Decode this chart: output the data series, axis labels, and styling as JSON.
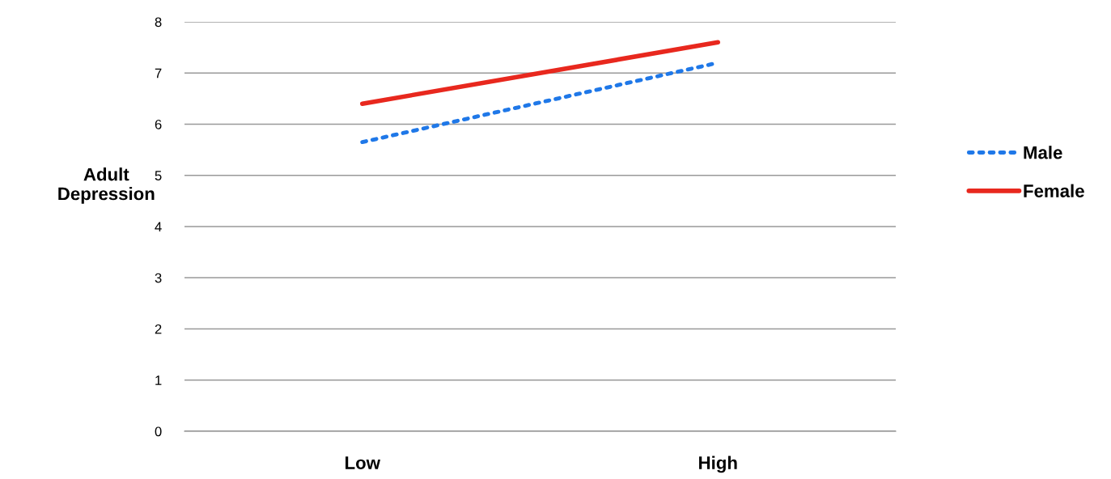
{
  "chart_data": {
    "type": "line",
    "ylabel": "Adult\nDepression",
    "categories": [
      "Low",
      "High"
    ],
    "ylim": [
      0,
      8
    ],
    "yticks": [
      0,
      1,
      2,
      3,
      4,
      5,
      6,
      7,
      8
    ],
    "grid": "y",
    "legend": "right",
    "marker": "none",
    "series": [
      {
        "name": "Male",
        "color": "#1f78e8",
        "values": [
          5.65,
          7.2
        ],
        "line_style": "dotted"
      },
      {
        "name": "Female",
        "color": "#e8281e",
        "values": [
          6.4,
          7.6
        ],
        "line_style": "solid"
      }
    ]
  }
}
